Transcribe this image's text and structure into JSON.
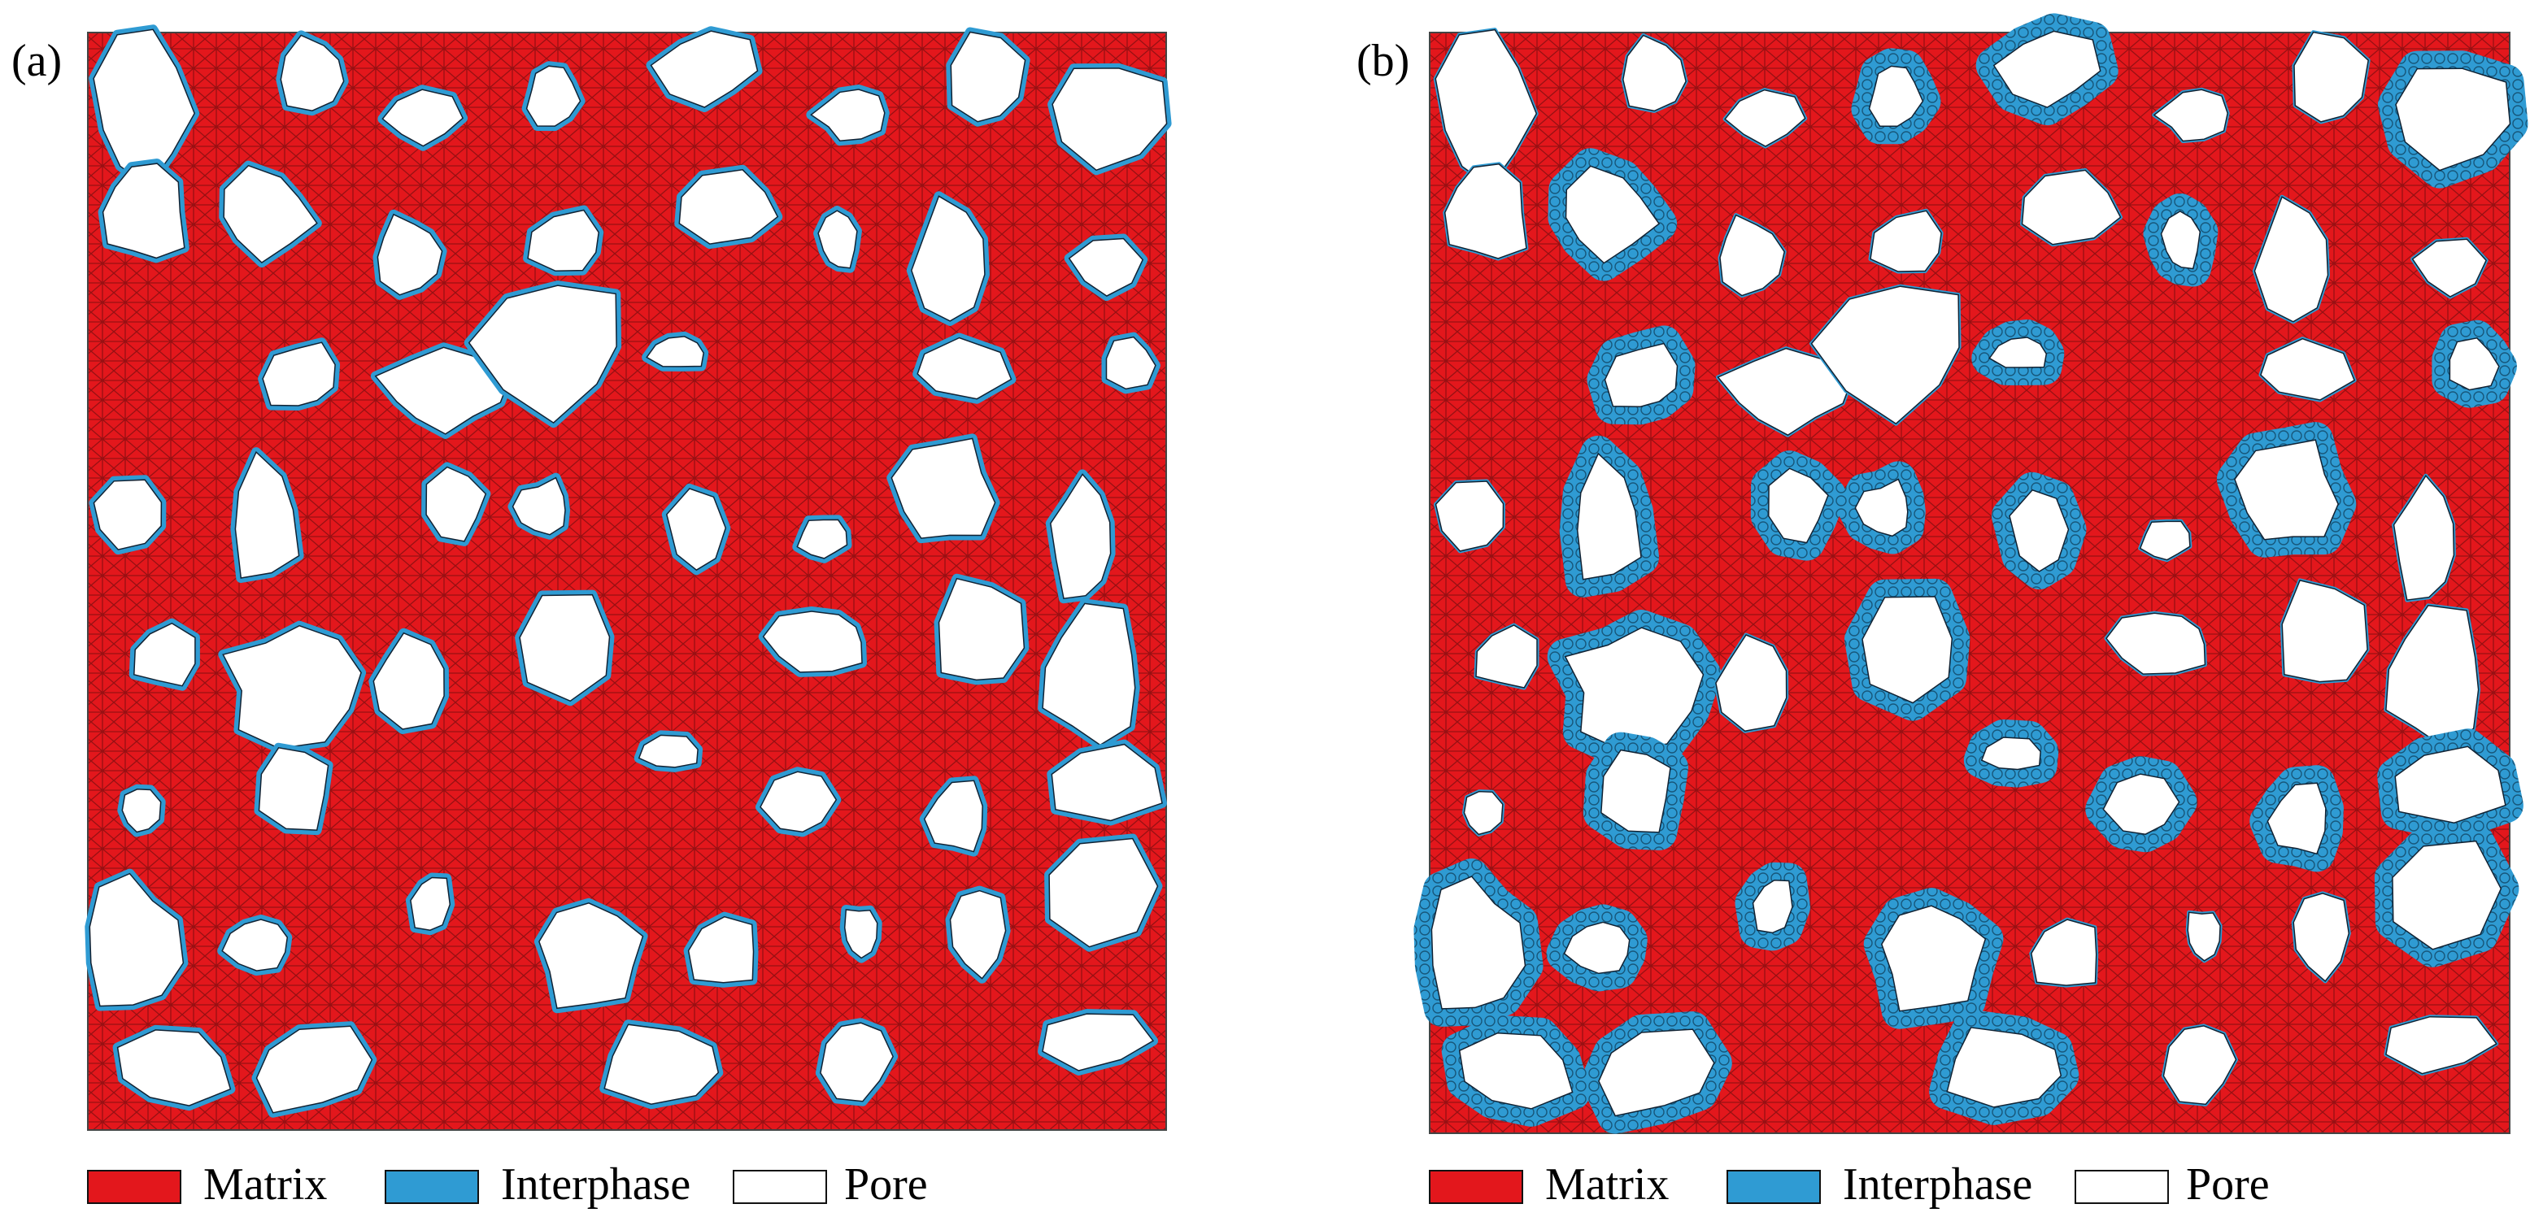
{
  "panels": [
    {
      "label": "(a)",
      "legend": [
        "Matrix",
        "Interphase",
        "Pore"
      ]
    },
    {
      "label": "(b)",
      "legend": [
        "Matrix",
        "Interphase",
        "Pore"
      ]
    }
  ]
}
